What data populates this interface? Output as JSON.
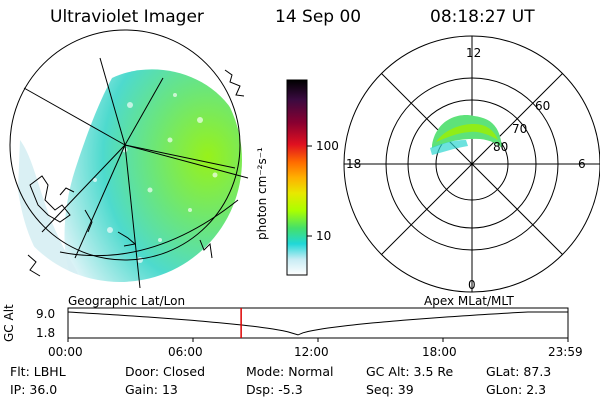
{
  "header": {
    "instrument": "Ultraviolet Imager",
    "date": "14 Sep 00",
    "time": "08:18:27 UT"
  },
  "colorbar": {
    "label": "photon cm⁻²s⁻¹",
    "ticks": [
      "100",
      "10"
    ],
    "colors": [
      "#000000",
      "#2a0a3a",
      "#8a0030",
      "#e01020",
      "#ff6a00",
      "#ffb000",
      "#e8e800",
      "#aaff00",
      "#44e06a",
      "#20d8d8",
      "#c8ecf4",
      "#ffffff"
    ]
  },
  "polar_plot": {
    "hour_labels": {
      "top": "12",
      "left": "18",
      "right": "6",
      "bottom": "0"
    },
    "lat_labels": [
      "60",
      "70",
      "80"
    ]
  },
  "timeline": {
    "left_title": "Geographic Lat/Lon",
    "right_title": "Apex  MLat/MLT",
    "y_axis_label": "GC Alt",
    "y_ticks": [
      "9.0",
      "1.8"
    ],
    "x_ticks": [
      "00:00",
      "06:00",
      "12:00",
      "18:00",
      "23:59"
    ],
    "current_hour": 8.31,
    "marker_color": "#dd0000"
  },
  "info": {
    "row1": [
      {
        "key": "Flt:",
        "value": "LBHL"
      },
      {
        "key": "Door:",
        "value": "Closed"
      },
      {
        "key": "Mode:",
        "value": "Normal"
      },
      {
        "key": "GC Alt:",
        "value": "3.5 Re"
      },
      {
        "key": "GLat:",
        "value": "87.3"
      }
    ],
    "row2": [
      {
        "key": "IP:",
        "value": "36.0"
      },
      {
        "key": "Gain:",
        "value": "13"
      },
      {
        "key": "Dsp:",
        "value": "-5.3"
      },
      {
        "key": "Seq:",
        "value": "39"
      },
      {
        "key": "GLon:",
        "value": "2.3"
      }
    ]
  }
}
